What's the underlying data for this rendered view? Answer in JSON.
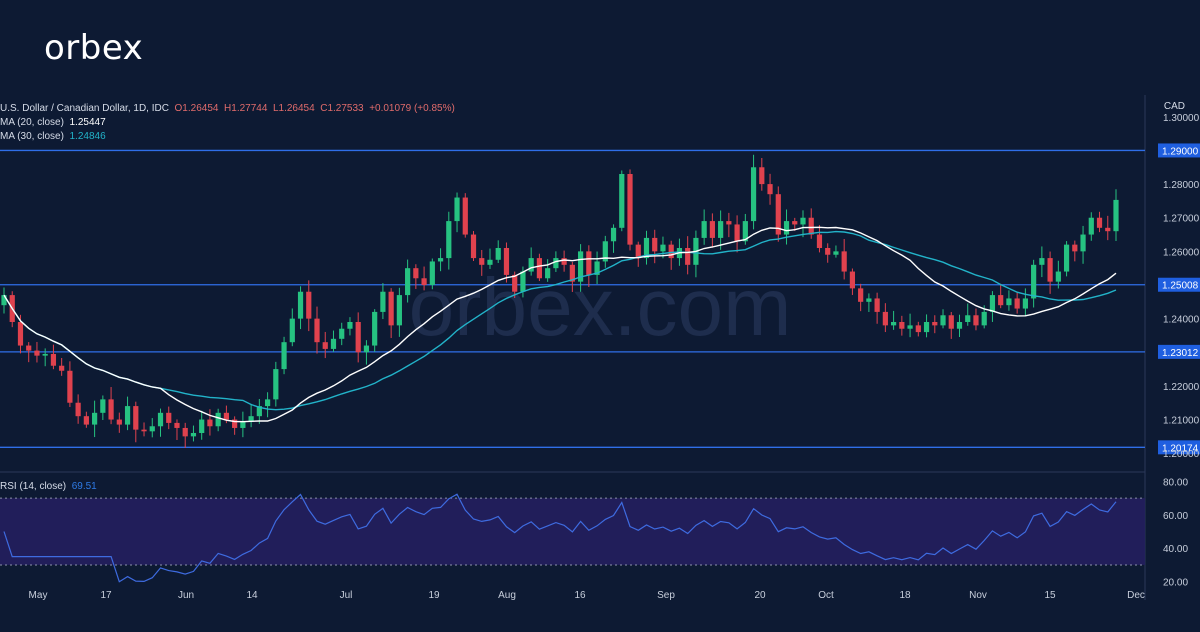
{
  "brand": {
    "logo_text": "orbex",
    "watermark": "orbex.com"
  },
  "header": {
    "symbol": "U.S. Dollar / Canadian Dollar, 1D, IDC",
    "open": "O1.26454",
    "high": "H1.27744",
    "low": "L1.26454",
    "close": "C1.27533",
    "change": "+0.01079 (+0.85%)",
    "ma20_label": "MA (20, close)",
    "ma20_value": "1.25447",
    "ma30_label": "MA (30, close)",
    "ma30_value": "1.24846",
    "rsi_label": "RSI (14, close)",
    "rsi_value": "69.51",
    "currency": "CAD"
  },
  "colors": {
    "background": "#0d1a33",
    "up": "#26c281",
    "down": "#e0424e",
    "ma20": "#ffffff",
    "ma30": "#22b3c9",
    "level": "#2f6ee8",
    "rsi": "#3e6be0",
    "tag": "#1f5fe0"
  },
  "chart_data": [
    {
      "type": "candlestick",
      "title": "U.S. Dollar / Canadian Dollar, 1D, IDC",
      "ylim": [
        1.195,
        1.305
      ],
      "y_ticks": [
        "1.30000",
        "1.28000",
        "1.27000",
        "1.26000",
        "1.24000",
        "1.22000",
        "1.21000",
        "1.20000"
      ],
      "x_ticks": [
        "May",
        "17",
        "Jun",
        "14",
        "Jul",
        "19",
        "Aug",
        "16",
        "Sep",
        "20",
        "Oct",
        "18",
        "Nov",
        "15",
        "Dec"
      ],
      "levels": [
        {
          "label": "1.29000",
          "value": 1.29
        },
        {
          "label": "1.25008",
          "value": 1.25008
        },
        {
          "label": "1.23012",
          "value": 1.23012
        },
        {
          "label": "1.20174",
          "value": 1.20174
        }
      ],
      "closes": [
        1.247,
        1.239,
        1.232,
        1.2305,
        1.229,
        1.2295,
        1.226,
        1.2245,
        1.215,
        1.211,
        1.2085,
        1.212,
        1.216,
        1.21,
        1.2085,
        1.214,
        1.207,
        1.2065,
        1.208,
        1.212,
        1.209,
        1.2075,
        1.205,
        1.206,
        1.21,
        1.208,
        1.212,
        1.21,
        1.2075,
        1.2095,
        1.211,
        1.214,
        1.216,
        1.225,
        1.233,
        1.24,
        1.248,
        1.24,
        1.233,
        1.231,
        1.234,
        1.237,
        1.239,
        1.23,
        1.232,
        1.242,
        1.248,
        1.238,
        1.247,
        1.255,
        1.252,
        1.25,
        1.257,
        1.258,
        1.269,
        1.276,
        1.265,
        1.258,
        1.256,
        1.2575,
        1.261,
        1.253,
        1.248,
        1.254,
        1.258,
        1.252,
        1.255,
        1.258,
        1.256,
        1.251,
        1.26,
        1.253,
        1.257,
        1.263,
        1.267,
        1.283,
        1.262,
        1.258,
        1.264,
        1.26,
        1.262,
        1.258,
        1.261,
        1.256,
        1.264,
        1.269,
        1.264,
        1.269,
        1.268,
        1.263,
        1.269,
        1.285,
        1.28,
        1.277,
        1.265,
        1.269,
        1.268,
        1.27,
        1.265,
        1.261,
        1.259,
        1.26,
        1.254,
        1.249,
        1.245,
        1.246,
        1.242,
        1.238,
        1.239,
        1.237,
        1.238,
        1.236,
        1.239,
        1.238,
        1.241,
        1.237,
        1.239,
        1.241,
        1.238,
        1.242,
        1.247,
        1.244,
        1.246,
        1.243,
        1.246,
        1.256,
        1.258,
        1.251,
        1.254,
        1.262,
        1.26,
        1.265,
        1.27,
        1.267,
        1.266,
        1.2753
      ],
      "ma20_last": 1.25447,
      "ma30_last": 1.24846
    },
    {
      "type": "line",
      "title": "RSI (14, close)",
      "ylim": [
        18,
        82
      ],
      "y_ticks": [
        "80.00",
        "60.00",
        "40.00",
        "20.00"
      ],
      "bands": [
        70,
        30
      ],
      "last": 69.51
    }
  ]
}
